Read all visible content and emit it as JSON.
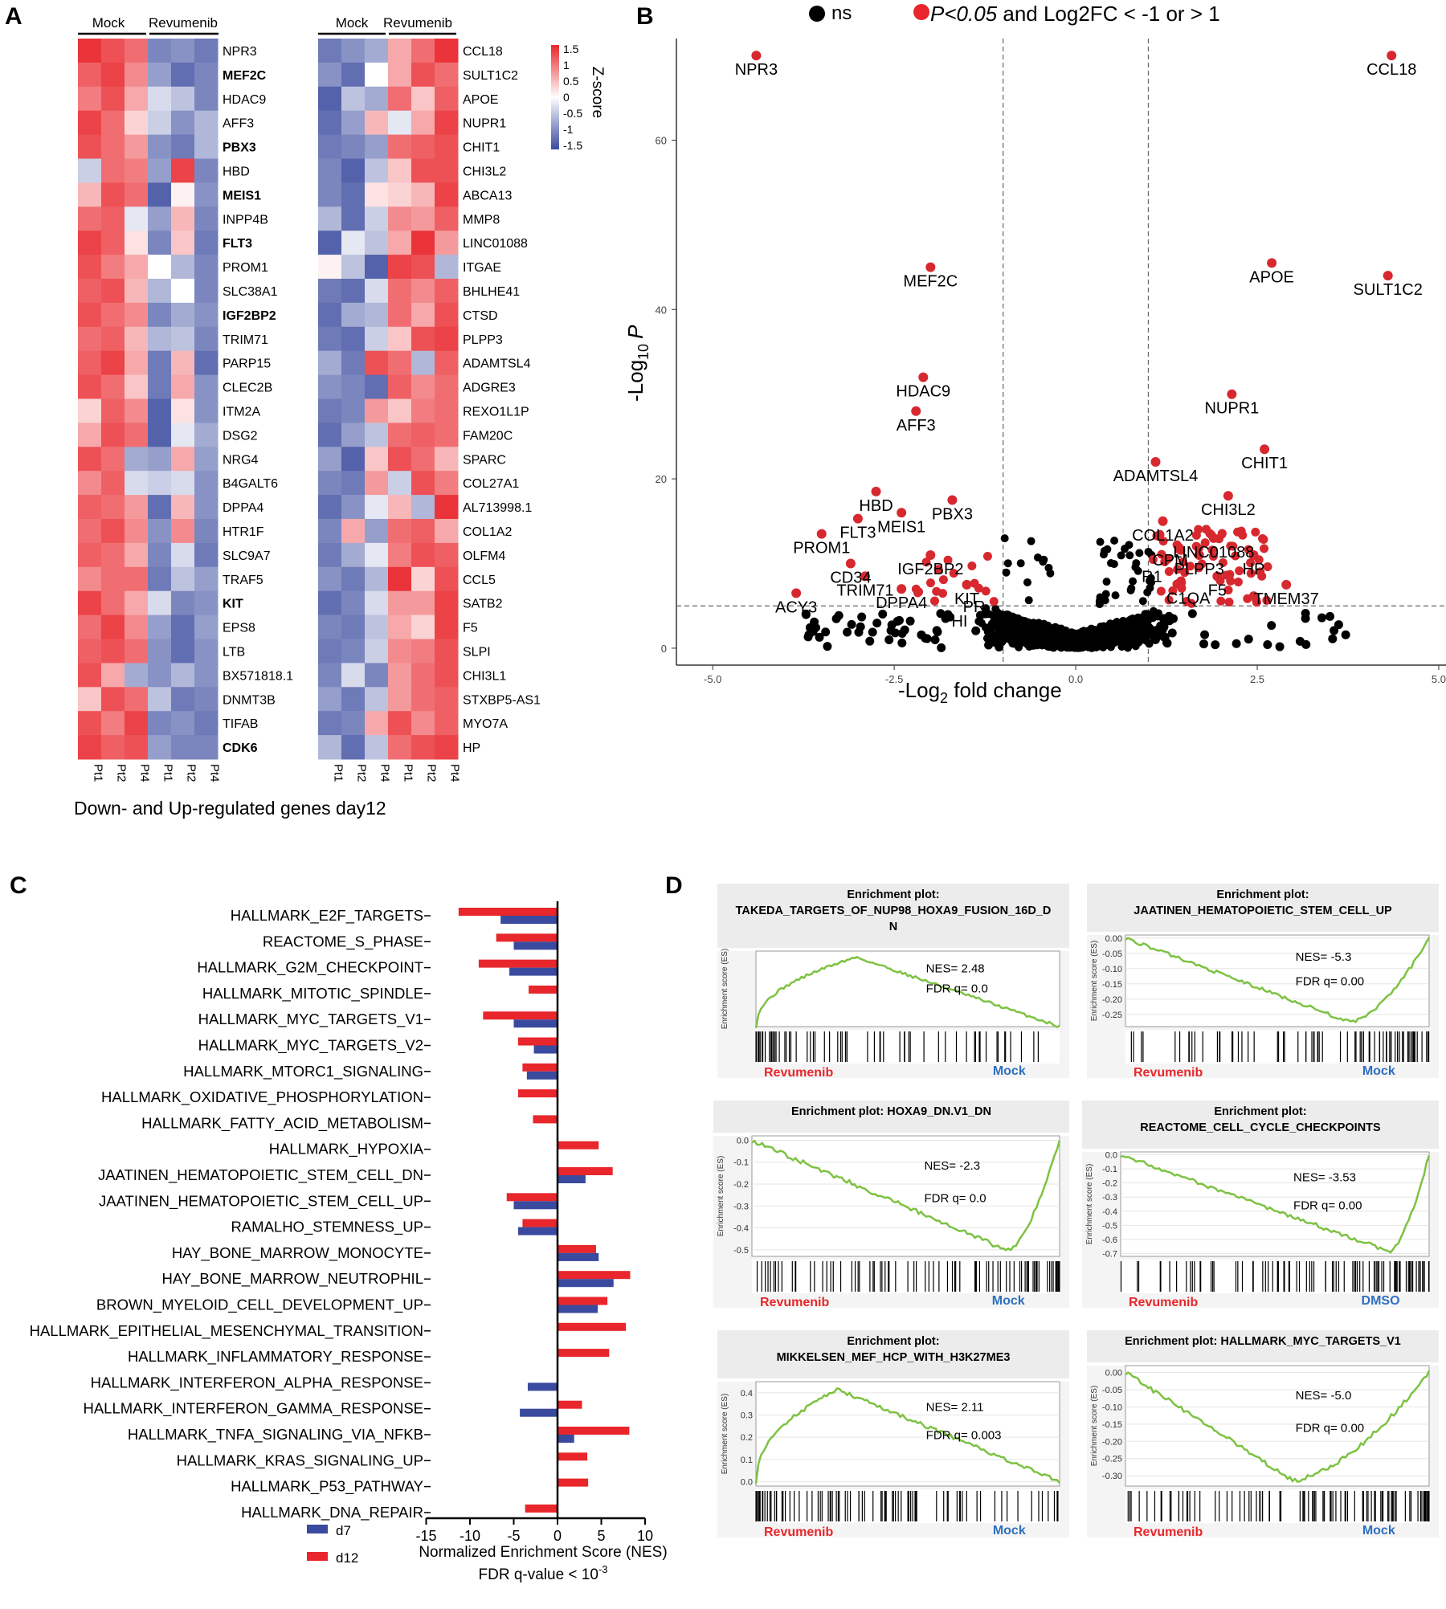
{
  "panels": {
    "a": "A",
    "b": "B",
    "c": "C",
    "d": "D"
  },
  "colors": {
    "red": "#e8262b",
    "blue": "#3a4a9e",
    "volcano_red": "#d7282f",
    "gsea_green": "#7dc242",
    "mock_blue": "#2e6fbf"
  },
  "heatmap": {
    "group_mock": "Mock",
    "group_revumenib": "Revumenib",
    "columns": [
      "Pt1",
      "Pt2",
      "Pt4",
      "Pt1",
      "Pt2",
      "Pt4"
    ],
    "caption": "Down- and Up-regulated genes day12",
    "colorbar_title": "Z-score",
    "colorbar_ticks": [
      "1.5",
      "1",
      "0.5",
      "0",
      "-0.5",
      "-1",
      "-1.5"
    ],
    "left_genes": [
      "NPR3",
      "MEF2C",
      "HDAC9",
      "AFF3",
      "PBX3",
      "HBD",
      "MEIS1",
      "INPP4B",
      "FLT3",
      "PROM1",
      "SLC38A1",
      "IGF2BP2",
      "TRIM71",
      "PARP15",
      "CLEC2B",
      "ITM2A",
      "DSG2",
      "NRG4",
      "B4GALT6",
      "DPPA4",
      "HTR1F",
      "SLC9A7",
      "TRAF5",
      "KIT",
      "EPS8",
      "LTB",
      "BX571818.1",
      "DNMT3B",
      "TIFAB",
      "CDK6"
    ],
    "left_bold": [
      "MEF2C",
      "PBX3",
      "MEIS1",
      "FLT3",
      "IGF2BP2",
      "KIT",
      "CDK6"
    ],
    "right_genes": [
      "CCL18",
      "SULT1C2",
      "APOE",
      "NUPR1",
      "CHIT1",
      "CHI3L2",
      "ABCA13",
      "MMP8",
      "LINC01088",
      "ITGAE",
      "BHLHE41",
      "CTSD",
      "PLPP3",
      "ADAMTSL4",
      "ADGRE3",
      "REXO1L1P",
      "FAM20C",
      "SPARC",
      "COL27A1",
      "AL713998.1",
      "COL1A2",
      "OLFM4",
      "CCL5",
      "SATB2",
      "F5",
      "SLPI",
      "CHI3L1",
      "STXBP5-AS1",
      "MYO7A",
      "HP"
    ],
    "left_values": [
      [
        1.4,
        1.2,
        1.0,
        -1.0,
        -0.9,
        -1.1
      ],
      [
        1.1,
        1.3,
        0.8,
        -0.8,
        -1.2,
        -1.0
      ],
      [
        0.9,
        1.2,
        0.6,
        -0.3,
        -0.5,
        -1.0
      ],
      [
        1.3,
        1.0,
        0.3,
        -0.4,
        -0.9,
        -0.6
      ],
      [
        1.2,
        1.0,
        0.7,
        -0.9,
        -1.1,
        -0.6
      ],
      [
        -0.4,
        1.0,
        0.9,
        -0.8,
        1.3,
        -1.0
      ],
      [
        0.5,
        1.2,
        1.0,
        -1.3,
        0.1,
        -0.9
      ],
      [
        1.0,
        1.1,
        -0.2,
        -0.8,
        0.5,
        -1.0
      ],
      [
        1.3,
        1.1,
        0.2,
        -1.0,
        0.4,
        -1.1
      ],
      [
        1.2,
        0.9,
        0.6,
        0.0,
        -0.6,
        -1.0
      ],
      [
        1.1,
        1.2,
        0.5,
        -0.6,
        0.0,
        -1.0
      ],
      [
        1.2,
        1.0,
        0.8,
        -1.0,
        -0.7,
        -0.9
      ],
      [
        1.0,
        1.1,
        0.5,
        -0.6,
        -0.5,
        -1.0
      ],
      [
        1.1,
        1.3,
        0.6,
        -1.1,
        0.5,
        -1.2
      ],
      [
        1.2,
        1.0,
        0.4,
        -1.1,
        0.6,
        -0.9
      ],
      [
        0.3,
        1.1,
        0.8,
        -1.3,
        0.2,
        -0.9
      ],
      [
        0.6,
        1.2,
        1.0,
        -1.3,
        -0.2,
        -0.7
      ],
      [
        1.2,
        1.0,
        -0.7,
        -0.8,
        0.6,
        -0.8
      ],
      [
        0.8,
        1.1,
        -0.3,
        -0.4,
        -0.3,
        -0.9
      ],
      [
        1.1,
        1.0,
        0.7,
        -1.2,
        0.5,
        -0.9
      ],
      [
        1.0,
        1.2,
        0.8,
        -0.9,
        0.8,
        -1.0
      ],
      [
        1.1,
        1.0,
        0.6,
        -1.0,
        -0.3,
        -1.1
      ],
      [
        0.8,
        1.0,
        1.0,
        -1.1,
        -0.5,
        -0.8
      ],
      [
        1.3,
        1.0,
        0.6,
        -0.3,
        -1.0,
        -0.9
      ],
      [
        1.0,
        1.3,
        0.8,
        -0.8,
        -1.2,
        -0.8
      ],
      [
        1.1,
        1.2,
        1.0,
        -0.9,
        -1.2,
        -0.9
      ],
      [
        1.2,
        0.6,
        -0.7,
        -0.9,
        -0.6,
        -0.9
      ],
      [
        0.4,
        1.2,
        1.0,
        -0.5,
        -1.1,
        -1.0
      ],
      [
        1.2,
        0.9,
        1.3,
        -1.0,
        -0.9,
        -1.1
      ],
      [
        1.3,
        1.1,
        1.2,
        -0.8,
        -1.0,
        -1.0
      ]
    ],
    "right_values": [
      [
        -1.1,
        -0.9,
        -0.7,
        0.6,
        1.0,
        1.4
      ],
      [
        -0.9,
        -1.2,
        0.0,
        0.6,
        1.2,
        1.0
      ],
      [
        -1.3,
        -0.5,
        -0.7,
        1.0,
        0.4,
        1.1
      ],
      [
        -1.2,
        -0.8,
        0.5,
        -0.2,
        0.6,
        1.3
      ],
      [
        -1.1,
        -1.0,
        -0.8,
        1.0,
        1.1,
        1.2
      ],
      [
        -1.0,
        -1.3,
        -0.5,
        0.4,
        1.2,
        1.2
      ],
      [
        -1.0,
        -1.2,
        0.2,
        0.3,
        0.5,
        1.3
      ],
      [
        -0.6,
        -1.2,
        -0.4,
        0.8,
        0.7,
        1.1
      ],
      [
        -1.3,
        -0.2,
        -0.5,
        0.6,
        1.4,
        0.7
      ],
      [
        0.1,
        -0.5,
        -1.3,
        1.3,
        1.2,
        -0.6
      ],
      [
        -1.1,
        -1.2,
        -0.3,
        1.0,
        0.8,
        1.1
      ],
      [
        -1.2,
        -0.7,
        -0.6,
        1.0,
        0.6,
        1.2
      ],
      [
        -1.1,
        -1.2,
        -0.4,
        0.4,
        1.2,
        1.3
      ],
      [
        -0.7,
        -1.1,
        1.2,
        1.0,
        -0.6,
        1.1
      ],
      [
        -0.9,
        -1.0,
        -1.2,
        1.1,
        0.8,
        1.0
      ],
      [
        -1.1,
        -1.0,
        0.7,
        0.4,
        0.9,
        1.0
      ],
      [
        -1.2,
        -0.8,
        -0.5,
        1.0,
        1.1,
        1.0
      ],
      [
        -0.8,
        -1.3,
        0.4,
        1.2,
        1.0,
        0.5
      ],
      [
        -1.0,
        -1.1,
        0.7,
        -0.4,
        1.2,
        0.9
      ],
      [
        -1.2,
        -0.9,
        -0.2,
        0.5,
        -0.6,
        1.4
      ],
      [
        -1.0,
        0.6,
        -0.8,
        1.0,
        1.1,
        0.6
      ],
      [
        -1.1,
        -0.7,
        -0.2,
        0.9,
        1.2,
        1.1
      ],
      [
        -0.9,
        -1.1,
        -0.6,
        1.4,
        0.3,
        1.2
      ],
      [
        -1.2,
        -1.0,
        -0.3,
        0.7,
        0.7,
        1.3
      ],
      [
        -1.0,
        -1.1,
        -0.5,
        0.6,
        0.3,
        1.3
      ],
      [
        -1.1,
        -1.0,
        -0.4,
        0.8,
        0.9,
        1.2
      ],
      [
        -1.0,
        -0.3,
        -1.0,
        0.7,
        1.0,
        1.2
      ],
      [
        -0.8,
        -1.1,
        -0.5,
        0.7,
        1.0,
        1.1
      ],
      [
        -1.1,
        -1.0,
        0.6,
        1.2,
        0.8,
        1.1
      ],
      [
        -0.6,
        -1.2,
        -0.5,
        1.0,
        1.2,
        1.3
      ]
    ]
  },
  "volcano": {
    "legend_ns": "ns",
    "legend_sig_italic": "P<0.05",
    "legend_sig_rest": " and Log2FC < -1 or > 1",
    "ylabel_prefix": "-Log",
    "ylabel_sub": "10",
    "ylabel_var": "P",
    "xlabel_prefix": "-Log",
    "xlabel_sub": "2",
    "xlabel_rest": " fold change",
    "xticks": [
      "-5.0",
      "-2.5",
      "0.0",
      "2.5",
      "5.0"
    ],
    "yticks": [
      "0",
      "20",
      "40",
      "60"
    ],
    "xlim": [
      -5.5,
      5.1
    ],
    "ylim": [
      -2,
      72
    ],
    "fc_threshold": 1,
    "p_threshold": 5,
    "labeled_points": [
      {
        "label": "NPR3",
        "x": -4.4,
        "y": 70
      },
      {
        "label": "CCL18",
        "x": 4.35,
        "y": 70
      },
      {
        "label": "MEF2C",
        "x": -2.0,
        "y": 45
      },
      {
        "label": "APOE",
        "x": 2.7,
        "y": 45.5
      },
      {
        "label": "SULT1C2",
        "x": 4.3,
        "y": 44
      },
      {
        "label": "HDAC9",
        "x": -2.1,
        "y": 32
      },
      {
        "label": "AFF3",
        "x": -2.2,
        "y": 28
      },
      {
        "label": "NUPR1",
        "x": 2.15,
        "y": 30
      },
      {
        "label": "CHIT1",
        "x": 2.6,
        "y": 23.5
      },
      {
        "label": "ADAMTSL4",
        "x": 1.1,
        "y": 22
      },
      {
        "label": "CHI3L2",
        "x": 2.1,
        "y": 18
      },
      {
        "label": "HBD",
        "x": -2.75,
        "y": 18.5
      },
      {
        "label": "PBX3",
        "x": -1.7,
        "y": 17.5
      },
      {
        "label": "MEIS1",
        "x": -2.4,
        "y": 16
      },
      {
        "label": "FLT3",
        "x": -3.0,
        "y": 15.3
      },
      {
        "label": "COL1A2",
        "x": 1.2,
        "y": 15
      },
      {
        "label": "LINC01088",
        "x": 1.9,
        "y": 13
      },
      {
        "label": "PROM1",
        "x": -3.5,
        "y": 13.5
      },
      {
        "label": "IGF2BP2",
        "x": -2.0,
        "y": 11
      },
      {
        "label": "PLPP3",
        "x": 1.7,
        "y": 11
      },
      {
        "label": "HP",
        "x": 2.45,
        "y": 11
      },
      {
        "label": "CD34",
        "x": -3.1,
        "y": 10
      },
      {
        "label": "TRIM71",
        "x": -2.9,
        "y": 8.5
      },
      {
        "label": "F5",
        "x": 1.95,
        "y": 8.5
      },
      {
        "label": "KIT",
        "x": -1.5,
        "y": 7.5
      },
      {
        "label": "DPPA4",
        "x": -2.4,
        "y": 7
      },
      {
        "label": "TMEM37",
        "x": 2.9,
        "y": 7.5
      },
      {
        "label": "ACY3",
        "x": -3.85,
        "y": 6.5
      }
    ],
    "extra_labels": [
      {
        "label": "CPM",
        "x": 1.3,
        "y": 10.5
      },
      {
        "label": "C1QA",
        "x": 1.55,
        "y": 6
      },
      {
        "label": "R1",
        "x": 1.05,
        "y": 8.6
      },
      {
        "label": "HI",
        "x": -1.6,
        "y": 3.3
      },
      {
        "label": "PR",
        "x": -1.4,
        "y": 5
      }
    ]
  },
  "nes": {
    "xlabel": "Normalized Enrichment Score (NES)",
    "sublabel_prefix": "FDR q-value < 10",
    "sublabel_exp": "-3",
    "xticks": [
      "-15",
      "-10",
      "-5",
      "0",
      "5",
      "10"
    ],
    "xlim": [
      -15,
      10
    ],
    "legend_d7": "d7",
    "legend_d12": "d12"
  },
  "chart_data": [
    {
      "type": "heatmap",
      "title": "Down- and Up-regulated genes day12",
      "colorbar": "Z-score",
      "columns": [
        "Mock Pt1",
        "Mock Pt2",
        "Mock Pt4",
        "Revumenib Pt1",
        "Revumenib Pt2",
        "Revumenib Pt4"
      ],
      "note": "values in heatmap.left_values / heatmap.right_values"
    },
    {
      "type": "scatter",
      "xlabel": "-Log2 fold change",
      "ylabel": "-Log10 P",
      "xlim": [
        -5.5,
        5.1
      ],
      "ylim": [
        -2,
        72
      ],
      "series": [
        {
          "name": "ns"
        },
        {
          "name": "P<0.05 and Log2FC < -1 or > 1"
        }
      ]
    },
    {
      "type": "bar",
      "xlabel": "Normalized Enrichment Score (NES)",
      "categories": [
        "HALLMARK_E2F_TARGETS",
        "REACTOME_S_PHASE",
        "HALLMARK_G2M_CHECKPOINT",
        "HALLMARK_MITOTIC_SPINDLE",
        "HALLMARK_MYC_TARGETS_V1",
        "HALLMARK_MYC_TARGETS_V2",
        "HALLMARK_MTORC1_SIGNALING",
        "HALLMARK_OXIDATIVE_PHOSPHORYLATION",
        "HALLMARK_FATTY_ACID_METABOLISM",
        "HALLMARK_HYPOXIA",
        "JAATINEN_HEMATOPOIETIC_STEM_CELL_DN",
        "JAATINEN_HEMATOPOIETIC_STEM_CELL_UP",
        "RAMALHO_STEMNESS_UP",
        "HAY_BONE_MARROW_MONOCYTE",
        "HAY_BONE_MARROW_NEUTROPHIL",
        "BROWN_MYELOID_CELL_DEVELOPMENT_UP",
        "HALLMARK_EPITHELIAL_MESENCHYMAL_TRANSITION",
        "HALLMARK_INFLAMMATORY_RESPONSE",
        "HALLMARK_INTERFERON_ALPHA_RESPONSE",
        "HALLMARK_INTERFERON_GAMMA_RESPONSE",
        "HALLMARK_TNFA_SIGNALING_VIA_NFKB",
        "HALLMARK_KRAS_SIGNALING_UP",
        "HALLMARK_P53_PATHWAY",
        "HALLMARK_DNA_REPAIR"
      ],
      "series": [
        {
          "name": "d12",
          "values": [
            -11.3,
            -7.0,
            -9.0,
            -3.3,
            -8.5,
            -4.5,
            -4.0,
            -4.5,
            -2.8,
            4.7,
            6.3,
            -5.8,
            -4.0,
            4.4,
            8.3,
            5.7,
            7.8,
            5.9,
            0,
            2.8,
            8.2,
            3.4,
            3.5,
            -3.7
          ]
        },
        {
          "name": "d7",
          "values": [
            -6.5,
            -5.0,
            -5.5,
            0,
            -5.0,
            -2.7,
            -3.5,
            0,
            0,
            0,
            3.2,
            -5.0,
            -4.5,
            4.7,
            6.4,
            4.6,
            0,
            0,
            -3.4,
            -4.3,
            1.9,
            0,
            0,
            0
          ]
        }
      ],
      "xlim": [
        -15,
        10
      ]
    },
    {
      "type": "line",
      "title": "GSEA enrichment plots",
      "plots": [
        {
          "title": "Enrichment plot:\nTAKEDA_TARGETS_OF_NUP98_HOXA9_FUSION_16D_D\nN",
          "nes": "NES= 2.48",
          "fdr": "FDR q= 0.0",
          "left": "Revumenib",
          "right": "Mock",
          "yticks": [],
          "shape": "pos",
          "peak": 0.33,
          "ymin": 0,
          "ymax": 1
        },
        {
          "title": "Enrichment plot:\nJAATINEN_HEMATOPOIETIC_STEM_CELL_UP",
          "nes": "NES= -5.3",
          "fdr": "FDR q= 0.00",
          "left": "Revumenib",
          "right": "Mock",
          "yticks": [
            "0.00",
            "-0.05",
            "-0.10",
            "-0.15",
            "-0.20",
            "-0.25"
          ],
          "shape": "neg",
          "peak": 0.74,
          "ymin": -0.29,
          "ymax": 0.01
        },
        {
          "title": "Enrichment plot: HOXA9_DN.V1_DN",
          "nes": "NES= -2.3",
          "fdr": "FDR q= 0.0",
          "left": "Revumenib",
          "right": "Mock",
          "yticks": [
            "0.0",
            "-0.1",
            "-0.2",
            "-0.3",
            "-0.4",
            "-0.5"
          ],
          "shape": "neg",
          "peak": 0.83,
          "ymin": -0.53,
          "ymax": 0.02
        },
        {
          "title": "Enrichment plot:\nREACTOME_CELL_CYCLE_CHECKPOINTS",
          "nes": "NES= -3.53",
          "fdr": "FDR q= 0.00",
          "left": "Revumenib",
          "right": "DMSO",
          "yticks": [
            "0.0",
            "-0.1",
            "-0.2",
            "-0.3",
            "-0.4",
            "-0.5",
            "-0.6",
            "-0.7"
          ],
          "shape": "neg",
          "peak": 0.87,
          "ymin": -0.72,
          "ymax": 0.02
        },
        {
          "title": "Enrichment plot:\nMIKKELSEN_MEF_HCP_WITH_H3K27ME3",
          "nes": "NES= 2.11",
          "fdr": "FDR q= 0.003",
          "left": "Revumenib",
          "right": "Mock",
          "yticks": [
            "0.4",
            "0.3",
            "0.2",
            "0.1",
            "0.0"
          ],
          "shape": "pos",
          "peak": 0.27,
          "ymin": -0.02,
          "ymax": 0.45
        },
        {
          "title": "Enrichment plot: HALLMARK_MYC_TARGETS_V1",
          "nes": "NES= -5.0",
          "fdr": "FDR q= 0.00",
          "left": "Revumenib",
          "right": "Mock",
          "yticks": [
            "0.00",
            "-0.05",
            "-0.10",
            "-0.15",
            "-0.20",
            "-0.25",
            "-0.30"
          ],
          "shape": "neg",
          "peak": 0.55,
          "ymin": -0.33,
          "ymax": 0.02
        }
      ]
    }
  ]
}
